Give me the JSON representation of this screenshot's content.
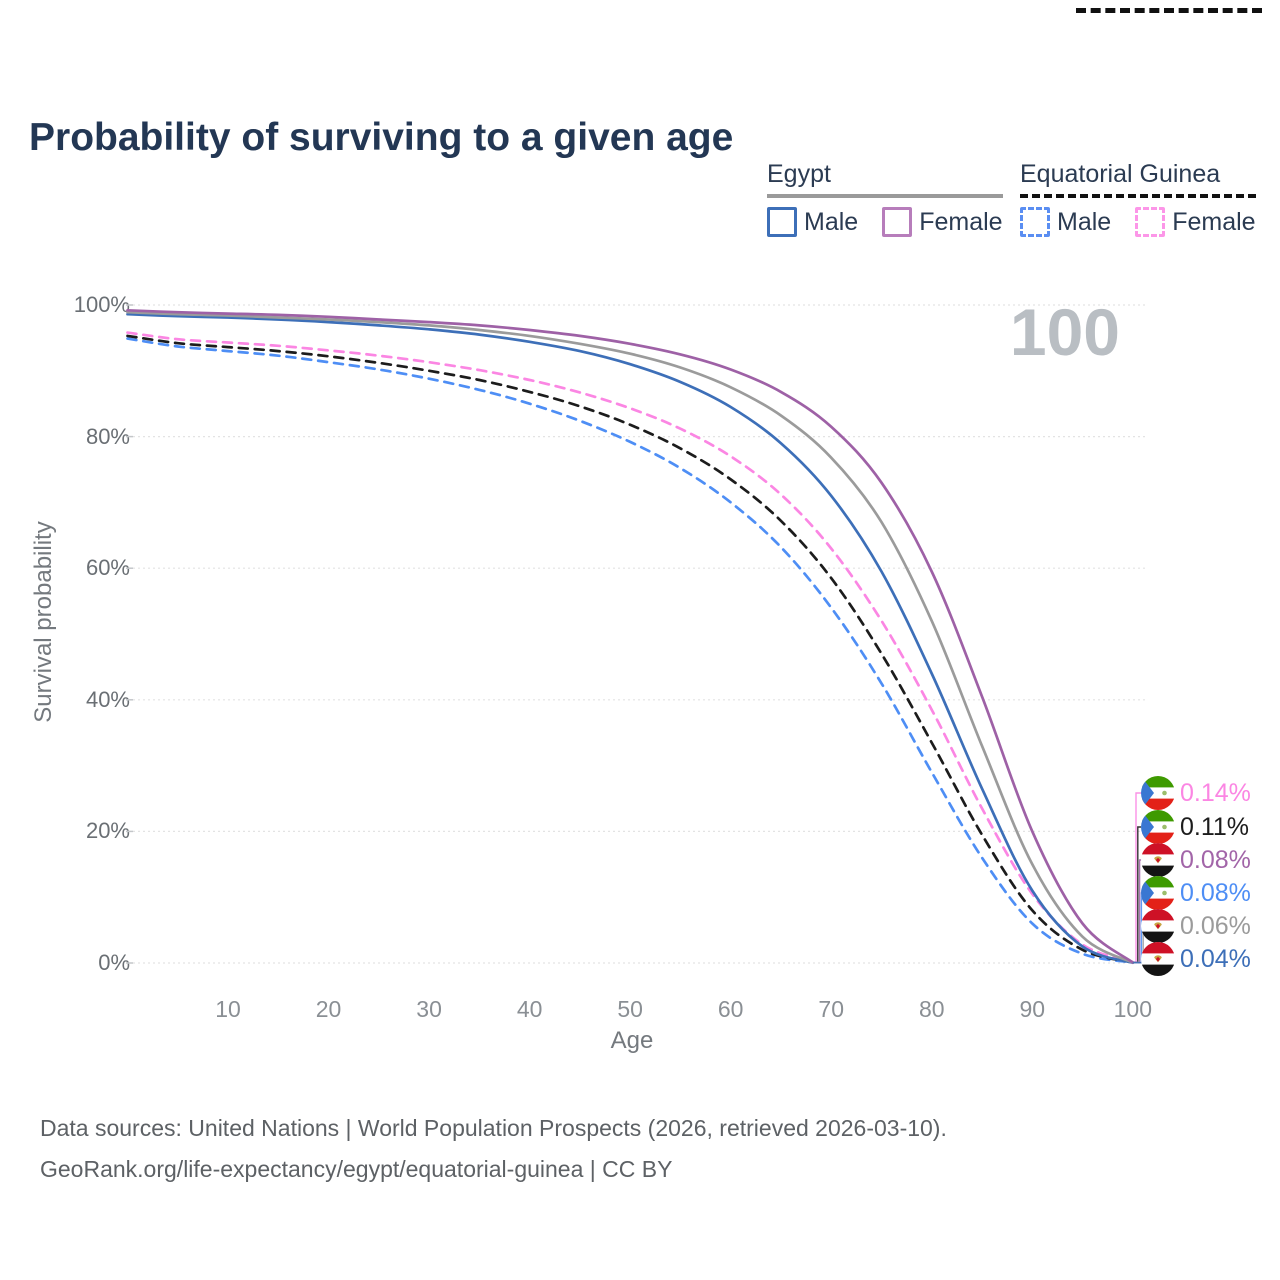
{
  "title": "Probability of surviving to a given age",
  "watermark": "100",
  "legend": {
    "groups": [
      {
        "label": "Egypt",
        "underline": "solid",
        "underline_color": "#9a9a9a",
        "items": [
          {
            "label": "Male",
            "color": "#3d6fb8",
            "dashed": false
          },
          {
            "label": "Female",
            "color": "#b77dbb",
            "dashed": false
          }
        ]
      },
      {
        "label": "Equatorial Guinea",
        "underline": "dashed",
        "underline_color": "#111111",
        "items": [
          {
            "label": "Male",
            "color": "#5a8ef2",
            "dashed": true
          },
          {
            "label": "Female",
            "color": "#fc96e8",
            "dashed": true
          }
        ]
      }
    ]
  },
  "chart_data": {
    "type": "line",
    "title": "Probability of surviving to a given age",
    "xlabel": "Age",
    "ylabel": "Survival probability",
    "xlim": [
      0,
      100
    ],
    "ylim": [
      0,
      100
    ],
    "grid": true,
    "x_ticks": [
      10,
      20,
      30,
      40,
      50,
      60,
      70,
      80,
      90,
      100
    ],
    "y_ticks": [
      {
        "label": "100%",
        "value": 100
      },
      {
        "label": "80%",
        "value": 80
      },
      {
        "label": "60%",
        "value": 60
      },
      {
        "label": "40%",
        "value": 40
      },
      {
        "label": "20%",
        "value": 20
      },
      {
        "label": "0%",
        "value": 0
      }
    ],
    "ages": [
      0,
      5,
      10,
      15,
      20,
      25,
      30,
      35,
      40,
      45,
      50,
      55,
      60,
      65,
      70,
      75,
      80,
      85,
      90,
      95,
      100
    ],
    "series": [
      {
        "name": "Equatorial Guinea Male",
        "country": "Equatorial Guinea",
        "sex": "Male",
        "color": "#4e8ef5",
        "dashed": true,
        "values": [
          94.9,
          93.7,
          93.0,
          92.3,
          91.3,
          90.2,
          88.8,
          87.1,
          85.0,
          82.4,
          79.2,
          75.2,
          70.0,
          63.2,
          54.0,
          42.5,
          29.0,
          16.0,
          6.0,
          1.4,
          0.08
        ]
      },
      {
        "name": "Equatorial Guinea Both sexes",
        "country": "Equatorial Guinea",
        "sex": "Both",
        "color": "#1c1c1c",
        "dashed": true,
        "values": [
          95.3,
          94.2,
          93.6,
          93.0,
          92.2,
          91.2,
          90.0,
          88.6,
          86.8,
          84.6,
          81.8,
          78.2,
          73.5,
          67.2,
          58.5,
          47.0,
          33.5,
          19.5,
          8.0,
          2.0,
          0.11
        ]
      },
      {
        "name": "Equatorial Guinea Female",
        "country": "Equatorial Guinea",
        "sex": "Female",
        "color": "#fb86e3",
        "dashed": true,
        "values": [
          95.8,
          94.8,
          94.3,
          93.8,
          93.1,
          92.3,
          91.3,
          90.1,
          88.6,
          86.7,
          84.3,
          81.2,
          77.0,
          71.2,
          63.0,
          52.0,
          38.5,
          23.5,
          10.5,
          2.8,
          0.14
        ]
      },
      {
        "name": "Egypt Male",
        "country": "Egypt",
        "sex": "Male",
        "color": "#3d6fb8",
        "dashed": false,
        "values": [
          98.6,
          98.3,
          98.1,
          97.8,
          97.4,
          96.9,
          96.3,
          95.5,
          94.4,
          93.0,
          91.0,
          88.3,
          84.5,
          79.0,
          71.0,
          59.5,
          44.0,
          26.5,
          11.0,
          2.5,
          0.04
        ]
      },
      {
        "name": "Egypt Both sexes",
        "country": "Egypt",
        "sex": "Both",
        "color": "#9b9b9b",
        "dashed": false,
        "values": [
          98.9,
          98.6,
          98.4,
          98.1,
          97.8,
          97.4,
          96.9,
          96.2,
          95.3,
          94.1,
          92.6,
          90.5,
          87.5,
          83.2,
          76.8,
          67.0,
          52.0,
          33.0,
          15.0,
          4.0,
          0.06
        ]
      },
      {
        "name": "Egypt Female",
        "country": "Egypt",
        "sex": "Female",
        "color": "#9e61a6",
        "dashed": false,
        "values": [
          99.2,
          98.9,
          98.7,
          98.5,
          98.2,
          97.8,
          97.4,
          96.9,
          96.2,
          95.3,
          94.1,
          92.5,
          90.2,
          86.8,
          81.5,
          73.0,
          59.5,
          40.5,
          20.0,
          6.0,
          0.08
        ]
      }
    ]
  },
  "end_labels": [
    {
      "flag": "gq",
      "value": "0.14%",
      "color": "#fb86e3",
      "series": 2
    },
    {
      "flag": "gq",
      "value": "0.11%",
      "color": "#1c1c1c",
      "series": 1
    },
    {
      "flag": "eg",
      "value": "0.08%",
      "color": "#a265a8",
      "series": 5
    },
    {
      "flag": "gq",
      "value": "0.08%",
      "color": "#4e8ef5",
      "series": 0
    },
    {
      "flag": "eg",
      "value": "0.06%",
      "color": "#9b9b9b",
      "series": 4
    },
    {
      "flag": "eg",
      "value": "0.04%",
      "color": "#3d6fb8",
      "series": 3
    }
  ],
  "footer": {
    "line1": "Data sources: United Nations | World Population Prospects (2026, retrieved 2026-03-10).",
    "line2": "GeoRank.org/life-expectancy/egypt/equatorial-guinea | CC BY"
  },
  "colors": {
    "grid": "#e3e3e3",
    "title": "#233754",
    "tick": "#8a8f94",
    "watermark": "#b9bec3"
  }
}
